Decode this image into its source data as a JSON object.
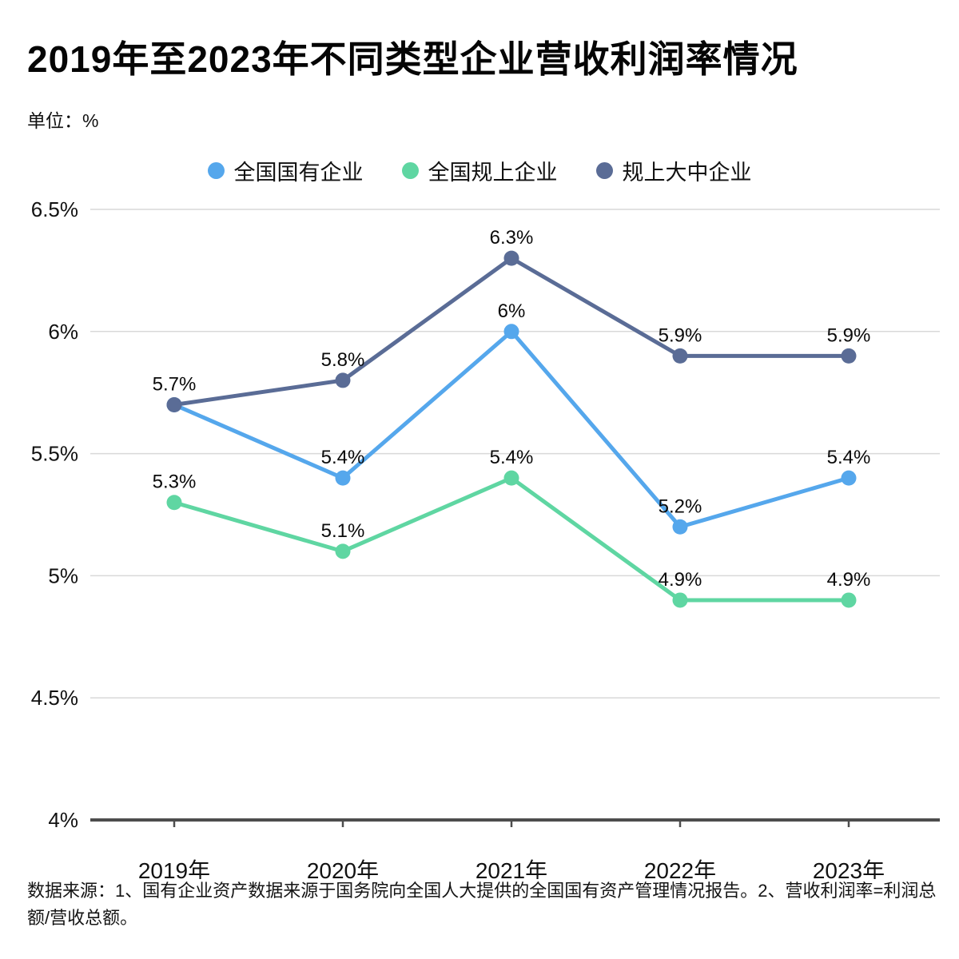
{
  "page": {
    "title": "2019年至2023年不同类型企业营收利润率情况",
    "unit_label": "单位：%",
    "footer": "数据来源：1、国有企业资产数据来源于国务院向全国人大提供的全国国有资产管理情况报告。2、营收利润率=利润总额/营收总额。"
  },
  "colors": {
    "gridline": "#d9d9d9",
    "axis": "#4d4d4d",
    "text": "#111111"
  },
  "chart_data": {
    "type": "line",
    "title": "2019年至2023年不同类型企业营收利润率情况",
    "unit": "%",
    "categories": [
      "2019年",
      "2020年",
      "2021年",
      "2022年",
      "2023年"
    ],
    "series": [
      {
        "name": "全国国有企业",
        "color": "#55a7ec",
        "values": [
          5.7,
          5.4,
          6.0,
          5.2,
          5.4
        ],
        "labels": [
          "",
          "5.4%",
          "6%",
          "5.2%",
          "5.4%"
        ]
      },
      {
        "name": "全国规上企业",
        "color": "#5fd6a2",
        "values": [
          5.3,
          5.1,
          5.4,
          4.9,
          4.9
        ],
        "labels": [
          "5.3%",
          "5.1%",
          "5.4%",
          "4.9%",
          "4.9%"
        ]
      },
      {
        "name": "规上大中企业",
        "color": "#5a6c96",
        "values": [
          5.7,
          5.8,
          6.3,
          5.9,
          5.9
        ],
        "labels": [
          "5.7%",
          "5.8%",
          "6.3%",
          "5.9%",
          "5.9%"
        ]
      }
    ],
    "y_ticks": [
      "6.5%",
      "6%",
      "5.5%",
      "5%",
      "4.5%",
      "4%"
    ],
    "ylim": [
      4,
      6.5
    ],
    "grid": true,
    "legend_position": "top"
  }
}
